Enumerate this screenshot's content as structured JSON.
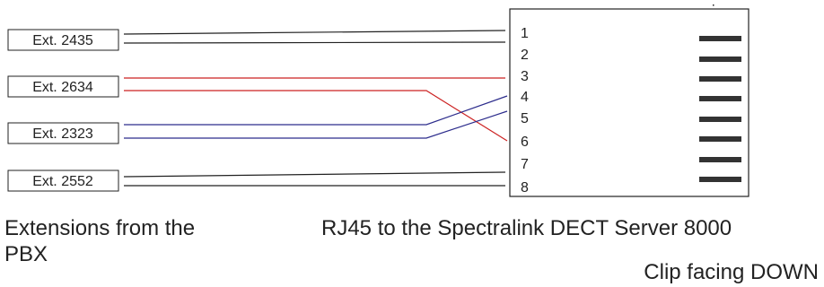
{
  "extensions": [
    {
      "label": "Ext. 2435",
      "color": "#222222"
    },
    {
      "label": "Ext. 2634",
      "color": "#cc2222"
    },
    {
      "label": "Ext. 2323",
      "color": "#2c2c8c"
    },
    {
      "label": "Ext. 2552",
      "color": "#222222"
    }
  ],
  "connector": {
    "pins": [
      "1",
      "2",
      "3",
      "4",
      "5",
      "6",
      "7",
      "8"
    ]
  },
  "captions": {
    "left": "Extensions from the PBX",
    "right": "RJ45 to the Spectralink DECT Server 8000",
    "clip": "Clip facing DOWN"
  },
  "colors": {
    "line": "#222222",
    "red_pair": "#cc2222",
    "blue_pair": "#2c2c8c"
  }
}
